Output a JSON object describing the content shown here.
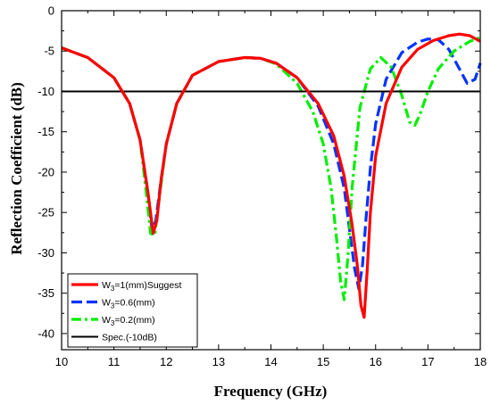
{
  "chart_data": {
    "type": "line",
    "xlabel": "Frequency (GHz)",
    "ylabel": "Reflection Coefficient (dB)",
    "xlim": [
      10,
      18
    ],
    "ylim": [
      -42,
      0
    ],
    "xticks": [
      10,
      11,
      12,
      13,
      14,
      15,
      16,
      17,
      18
    ],
    "xtick_labels": [
      "10",
      "11",
      "12",
      "13",
      "14",
      "15",
      "16",
      "17",
      "18"
    ],
    "yticks": [
      0,
      -5,
      -10,
      -15,
      -20,
      -25,
      -30,
      -35,
      -40
    ],
    "ytick_labels": [
      "0",
      "-5",
      "-10",
      "-15",
      "-20",
      "-25",
      "-30",
      "-35",
      "-40"
    ],
    "grid": false,
    "legend_position": "bottom-left",
    "series": [
      {
        "name": "W3=1(mm)Suggest",
        "label_main": "W",
        "label_sub": "3",
        "label_rest": "=1(mm)Suggest",
        "color": "#ff0000",
        "style": "solid",
        "x": [
          10,
          10.5,
          11,
          11.3,
          11.5,
          11.65,
          11.75,
          11.82,
          11.9,
          12.0,
          12.2,
          12.5,
          13,
          13.5,
          13.8,
          14.1,
          14.5,
          14.9,
          15.2,
          15.4,
          15.55,
          15.65,
          15.72,
          15.78,
          15.84,
          15.9,
          16.0,
          16.2,
          16.5,
          16.8,
          17.1,
          17.4,
          17.6,
          17.8,
          18
        ],
        "y": [
          -4.6,
          -5.8,
          -8.3,
          -11.5,
          -16.0,
          -22.5,
          -27.6,
          -26.0,
          -21.0,
          -16.5,
          -11.5,
          -8.0,
          -6.3,
          -5.8,
          -5.9,
          -6.5,
          -8.3,
          -11.5,
          -15.5,
          -20.5,
          -26.5,
          -31.5,
          -36.5,
          -38.0,
          -32.0,
          -25.0,
          -18.0,
          -11.5,
          -7.0,
          -4.8,
          -3.7,
          -3.1,
          -2.9,
          -3.1,
          -3.8
        ]
      },
      {
        "name": "W3=0.6(mm)",
        "label_main": "W",
        "label_sub": "3",
        "label_rest": "=0.6(mm)",
        "color": "#0033ff",
        "style": "dashed",
        "x": [
          10,
          10.5,
          11,
          11.3,
          11.5,
          11.65,
          11.73,
          11.8,
          11.9,
          12.0,
          12.2,
          12.5,
          13,
          13.5,
          13.8,
          14.1,
          14.5,
          14.9,
          15.2,
          15.4,
          15.5,
          15.6,
          15.68,
          15.75,
          15.82,
          15.9,
          16.0,
          16.2,
          16.5,
          16.8,
          17.0,
          17.2,
          17.4,
          17.6,
          17.75,
          17.9,
          18
        ],
        "y": [
          -4.6,
          -5.8,
          -8.3,
          -11.5,
          -16.0,
          -22.5,
          -27.3,
          -26.0,
          -21.0,
          -16.5,
          -11.5,
          -8.0,
          -6.3,
          -5.8,
          -5.9,
          -6.5,
          -8.3,
          -11.8,
          -16.5,
          -22.0,
          -27.0,
          -32.0,
          -34.5,
          -31.5,
          -25.5,
          -19.5,
          -14.0,
          -8.5,
          -5.2,
          -3.9,
          -3.5,
          -3.6,
          -4.8,
          -7.2,
          -9.0,
          -8.5,
          -6.5
        ]
      },
      {
        "name": "W3=0.2(mm)",
        "label_main": "W",
        "label_sub": "3",
        "label_rest": "=0.2(mm)",
        "color": "#00ee00",
        "style": "dashdot",
        "x": [
          10,
          10.5,
          11,
          11.3,
          11.5,
          11.6,
          11.7,
          11.78,
          11.85,
          12.0,
          12.2,
          12.5,
          13,
          13.5,
          13.8,
          14.1,
          14.5,
          14.8,
          15.0,
          15.15,
          15.25,
          15.33,
          15.4,
          15.47,
          15.55,
          15.7,
          15.9,
          16.1,
          16.3,
          16.5,
          16.65,
          16.75,
          16.85,
          17.0,
          17.2,
          17.5,
          17.8,
          18
        ],
        "y": [
          -4.6,
          -5.8,
          -8.3,
          -11.5,
          -16.0,
          -21.5,
          -27.6,
          -27.8,
          -24.0,
          -16.5,
          -11.5,
          -8.0,
          -6.3,
          -5.8,
          -5.9,
          -6.6,
          -9.0,
          -12.5,
          -16.5,
          -22.0,
          -28.0,
          -33.5,
          -35.8,
          -30.5,
          -22.0,
          -12.0,
          -7.2,
          -5.8,
          -7.0,
          -10.5,
          -13.8,
          -14.2,
          -12.8,
          -10.0,
          -7.2,
          -5.0,
          -3.8,
          -3.3
        ]
      },
      {
        "name": "Spec.(-10dB)",
        "label_main": "Spec.(-10dB)",
        "label_sub": "",
        "label_rest": "",
        "color": "#000000",
        "style": "solid",
        "x": [
          10,
          18
        ],
        "y": [
          -10,
          -10
        ]
      }
    ]
  }
}
